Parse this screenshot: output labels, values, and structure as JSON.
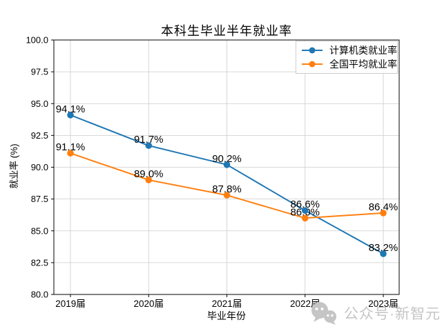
{
  "chart_data": {
    "type": "line",
    "title": "本科生毕业半年就业率",
    "xlabel": "毕业年份",
    "ylabel": "就业率 (%)",
    "categories": [
      "2019届",
      "2020届",
      "2021届",
      "2022届",
      "2023届"
    ],
    "series": [
      {
        "name": "计算机类就业率",
        "color": "#1f77b4",
        "marker": "circle",
        "values": [
          94.1,
          91.7,
          90.2,
          86.6,
          83.2
        ],
        "point_labels": [
          "94.1%",
          "91.7%",
          "90.2%",
          "86.6%",
          "83.2%"
        ]
      },
      {
        "name": "全国平均就业率",
        "color": "#ff7f0e",
        "marker": "circle",
        "values": [
          91.1,
          89.0,
          87.8,
          86.0,
          86.4
        ],
        "point_labels": [
          "91.1%",
          "89.0%",
          "87.8%",
          "86.0%",
          "86.4%"
        ]
      }
    ],
    "ylim": [
      80.0,
      100.0
    ],
    "ytick_labels": [
      "80.0",
      "82.5",
      "85.0",
      "87.5",
      "90.0",
      "92.5",
      "95.0",
      "97.5",
      "100.0"
    ],
    "grid": true,
    "legend_position": "top-right",
    "colors": {
      "grid": "#cccccc",
      "axis": "#000000",
      "text": "#000000"
    }
  },
  "watermark": {
    "icon": "wechat-chat-faces-icon",
    "text": "公众号·新智元",
    "color": "#c5c5c5"
  }
}
